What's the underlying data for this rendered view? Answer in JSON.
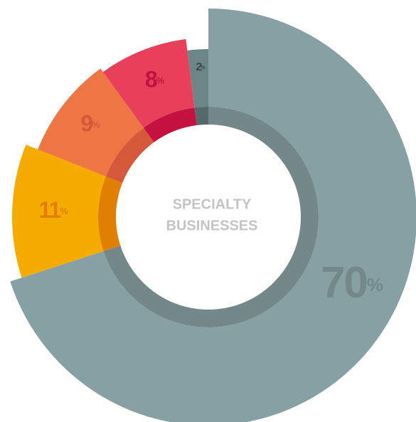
{
  "chart_data": {
    "type": "donut",
    "center_label": [
      "SPECIALTY",
      "BUSINESSES"
    ],
    "categories": [
      null,
      null,
      null,
      null,
      null
    ],
    "values": [
      70,
      11,
      9,
      8,
      2
    ],
    "value_labels": [
      "70%",
      "11%",
      "9%",
      "8%",
      "2%"
    ],
    "colors": [
      "#86a0a3",
      "#f6ab00",
      "#ee7644",
      "#e8405a",
      "#6c8587"
    ],
    "inner_colors": [
      "#74888a",
      "#e07f00",
      "#d5583a",
      "#c5113f",
      "#55686a"
    ]
  }
}
